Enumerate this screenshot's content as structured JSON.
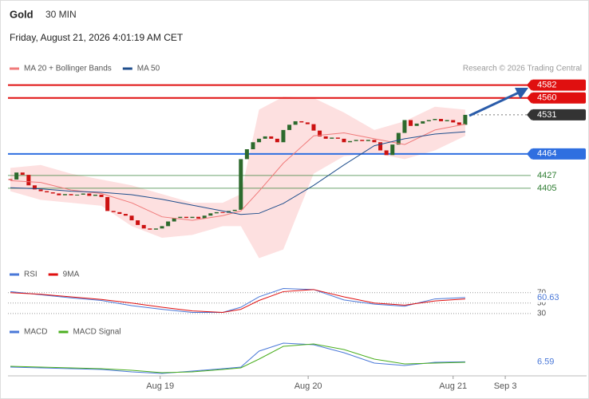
{
  "chart_data": [
    {
      "type": "candlestick",
      "title": "Gold",
      "subtitle": "30 MIN",
      "annotations": [
        "Friday, August 21, 2026 4:01:19 AM CET",
        "Research © 2026 Trading Central"
      ],
      "closes": [
        4420,
        4432,
        4428,
        4410,
        4403,
        4400,
        4398,
        4396,
        4393,
        4395,
        4393,
        4394,
        4396,
        4392,
        4394,
        4390,
        4366,
        4364,
        4361,
        4358,
        4350,
        4342,
        4336,
        4334,
        4336,
        4340,
        4348,
        4354,
        4356,
        4354,
        4356,
        4353,
        4358,
        4362,
        4364,
        4363,
        4366,
        4368,
        4455,
        4472,
        4484,
        4490,
        4494,
        4490,
        4484,
        4505,
        4514,
        4520,
        4518,
        4515,
        4504,
        4494,
        4490,
        4492,
        4490,
        4484,
        4486,
        4488,
        4486,
        4488,
        4484,
        4470,
        4462,
        4480,
        4500,
        4522,
        4512,
        4516,
        4520,
        4522,
        4524,
        4520,
        4522,
        4518,
        4514,
        4531
      ],
      "up_color": "#2d6a2d",
      "down_color": "#cc1111",
      "x": [
        0,
        5,
        10,
        15,
        20,
        25,
        30,
        35,
        38,
        41,
        45,
        50,
        55,
        60,
        65,
        70,
        75
      ],
      "series": [
        {
          "name": "MA 20 + Bollinger Bands",
          "color": "#f07a7a",
          "band_color": "#fde0e0",
          "values": [
            4418,
            4415,
            4402,
            4396,
            4380,
            4356,
            4350,
            4358,
            4366,
            4400,
            4448,
            4495,
            4500,
            4490,
            4480,
            4505,
            4515
          ],
          "upper": [
            4440,
            4445,
            4430,
            4420,
            4410,
            4395,
            4380,
            4380,
            4395,
            4540,
            4562,
            4560,
            4535,
            4505,
            4520,
            4545,
            4540
          ],
          "lower": [
            4400,
            4385,
            4380,
            4375,
            4340,
            4320,
            4325,
            4340,
            4340,
            4285,
            4300,
            4430,
            4460,
            4465,
            4455,
            4470,
            4495
          ]
        },
        {
          "name": "MA 50",
          "color": "#1f4e8c",
          "values": [
            4406,
            4404,
            4400,
            4398,
            4394,
            4386,
            4376,
            4366,
            4360,
            4362,
            4379,
            4410,
            4445,
            4478,
            4490,
            4498,
            4502
          ]
        }
      ],
      "levels": [
        {
          "value": 4582,
          "color": "#e01010",
          "style": "solid"
        },
        {
          "value": 4560,
          "color": "#e01010",
          "style": "solid"
        },
        {
          "value": 4531,
          "color": "#333333",
          "style": "dotted"
        },
        {
          "value": 4464,
          "color": "#2f6fe0",
          "style": "solid"
        },
        {
          "value": 4427,
          "color": "#2e7d32",
          "style": "thin"
        },
        {
          "value": 4405,
          "color": "#2e7d32",
          "style": "thin"
        }
      ],
      "xlim": [
        -0.4,
        85.8
      ],
      "ylim": [
        4283,
        4598
      ]
    },
    {
      "type": "line",
      "x": [
        0,
        5,
        10,
        15,
        20,
        25,
        30,
        35,
        38,
        41,
        45,
        50,
        55,
        60,
        65,
        70,
        75
      ],
      "series": [
        {
          "name": "RSI",
          "color": "#4a78d8",
          "values": [
            72,
            66,
            60,
            55,
            45,
            38,
            32,
            32,
            42,
            62,
            78,
            76,
            56,
            48,
            44,
            58,
            60.63
          ]
        },
        {
          "name": "9MA",
          "color": "#e01010",
          "values": [
            70,
            67,
            62,
            57,
            50,
            42,
            35,
            32,
            38,
            55,
            72,
            76,
            62,
            50,
            46,
            54,
            58
          ]
        }
      ],
      "xlim": [
        -0.4,
        85.8
      ],
      "ylim": [
        19,
        88
      ],
      "yticks": [
        70,
        50,
        30
      ],
      "grid": true
    },
    {
      "type": "line",
      "x": [
        0,
        5,
        10,
        15,
        20,
        25,
        30,
        35,
        38,
        41,
        45,
        50,
        55,
        60,
        65,
        70,
        75
      ],
      "series": [
        {
          "name": "MACD",
          "color": "#4a78d8",
          "values": [
            0,
            -1,
            -2,
            -3,
            -6,
            -8,
            -5,
            -2,
            0,
            20,
            30,
            28,
            18,
            5,
            2,
            6,
            6.59
          ]
        },
        {
          "name": "MACD Signal",
          "color": "#4caf20",
          "values": [
            1,
            0,
            -1,
            -2,
            -4,
            -7,
            -6,
            -3,
            -1,
            10,
            26,
            29,
            22,
            10,
            4,
            5,
            6
          ]
        }
      ],
      "xlim": [
        -0.4,
        85.8
      ],
      "ylim": [
        -12,
        40
      ],
      "xticks": [
        {
          "value": 24.7,
          "label": "Aug 19"
        },
        {
          "value": 49.1,
          "label": "Aug 20"
        },
        {
          "value": 73,
          "label": "Aug 21"
        },
        {
          "value": 81.6,
          "label": "Sep 3"
        }
      ]
    }
  ]
}
